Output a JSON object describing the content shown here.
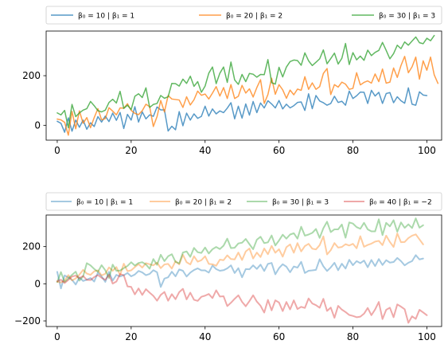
{
  "chart_data": [
    {
      "type": "line",
      "xlim": [
        -3,
        104
      ],
      "ylim": [
        -60,
        380
      ],
      "xticks": [
        0,
        20,
        40,
        60,
        80,
        100
      ],
      "yticks": [
        0,
        200
      ],
      "legend_placement": "top (above axes), 3 columns",
      "series": [
        {
          "name": "β₀ = 10 | β₁ = 1",
          "color": "#1f77b4",
          "values": [
            16,
            8,
            -28,
            30,
            -24,
            21,
            -8,
            21,
            -16,
            10,
            -5,
            35,
            13,
            37,
            15,
            49,
            20,
            52,
            -13,
            44,
            21,
            75,
            13,
            54,
            26,
            42,
            36,
            74,
            62,
            62,
            -23,
            -4,
            -18,
            55,
            -2,
            49,
            21,
            46,
            28,
            36,
            77,
            37,
            66,
            46,
            58,
            51,
            69,
            91,
            26,
            77,
            29,
            86,
            41,
            96,
            51,
            90,
            70,
            99,
            86,
            70,
            100,
            66,
            85,
            70,
            79,
            92,
            94,
            60,
            127,
            67,
            120,
            98,
            91,
            81,
            88,
            117,
            92,
            97,
            81,
            138,
            108,
            119,
            134,
            133,
            88,
            141,
            118,
            133,
            88,
            128,
            132,
            91,
            115,
            99,
            89,
            151,
            85,
            81,
            135,
            122,
            120
          ]
        },
        {
          "name": "β₀ = 20 | β₁ = 2",
          "color": "#ff7f0e",
          "values": [
            25,
            22,
            12,
            -40,
            56,
            -14,
            58,
            8,
            31,
            -10,
            31,
            67,
            22,
            27,
            71,
            57,
            42,
            70,
            69,
            87,
            60,
            48,
            43,
            59,
            85,
            75,
            -5,
            35,
            100,
            54,
            120,
            106,
            104,
            102,
            72,
            115,
            82,
            103,
            138,
            121,
            126,
            106,
            130,
            156,
            118,
            152,
            108,
            164,
            108,
            117,
            161,
            130,
            147,
            114,
            152,
            184,
            88,
            124,
            190,
            125,
            164,
            143,
            109,
            142,
            123,
            146,
            141,
            196,
            145,
            171,
            145,
            156,
            209,
            229,
            124,
            164,
            154,
            174,
            166,
            145,
            149,
            212,
            163,
            173,
            179,
            170,
            207,
            176,
            227,
            170,
            174,
            231,
            193,
            241,
            278,
            212,
            236,
            275,
            186,
            260,
            222,
            275,
            203,
            169
          ]
        },
        {
          "name": "β₀ = 30 | β₁ = 3",
          "color": "#2ca02c",
          "values": [
            50,
            42,
            60,
            -10,
            84,
            35,
            50,
            61,
            67,
            96,
            79,
            59,
            54,
            61,
            92,
            105,
            90,
            137,
            68,
            81,
            63,
            117,
            127,
            112,
            151,
            72,
            84,
            88,
            120,
            109,
            115,
            169,
            168,
            158,
            186,
            169,
            198,
            157,
            176,
            133,
            158,
            210,
            235,
            168,
            210,
            235,
            173,
            255,
            183,
            165,
            205,
            176,
            209,
            206,
            194,
            205,
            204,
            265,
            172,
            166,
            234,
            195,
            235,
            257,
            263,
            261,
            242,
            292,
            260,
            241,
            254,
            268,
            304,
            248,
            269,
            291,
            247,
            270,
            330,
            245,
            293,
            264,
            279,
            262,
            303,
            281,
            294,
            302,
            334,
            302,
            268,
            289,
            323,
            309,
            336,
            323,
            340,
            356,
            333,
            329,
            351,
            341,
            362
          ]
        }
      ]
    },
    {
      "type": "line",
      "xlim": [
        -3,
        104
      ],
      "ylim": [
        -230,
        370
      ],
      "xticks": [
        0,
        20,
        40,
        60,
        80,
        100
      ],
      "yticks": [
        -200,
        0,
        200
      ],
      "legend_placement": "top (above axes), 4 columns",
      "series": [
        {
          "name": "β₀ = 10 | β₁ = 1",
          "color": "#1f77b4",
          "values": [
            64,
            -25,
            45,
            34,
            21,
            -4,
            34,
            15,
            22,
            31,
            12,
            60,
            40,
            10,
            64,
            17,
            48,
            39,
            46,
            58,
            40,
            50,
            69,
            61,
            46,
            53,
            73,
            62,
            -17,
            28,
            35,
            65,
            40,
            77,
            70,
            39,
            60,
            74,
            83,
            72,
            72,
            60,
            98,
            79,
            70,
            73,
            83,
            99,
            58,
            84,
            35,
            79,
            78,
            99,
            80,
            103,
            69,
            107,
            112,
            51,
            84,
            105,
            92,
            62,
            93,
            87,
            118,
            58,
            70,
            72,
            75,
            132,
            94,
            69,
            88,
            113,
            73,
            108,
            82,
            129,
            100,
            122,
            111,
            125,
            89,
            128,
            95,
            133,
            101,
            127,
            114,
            117,
            139,
            122,
            99,
            113,
            122,
            154,
            131,
            136
          ]
        },
        {
          "name": "β₀ = 20 | β₁ = 2",
          "color": "#ff7f0e",
          "values": [
            11,
            7,
            16,
            47,
            18,
            29,
            49,
            75,
            55,
            48,
            67,
            72,
            45,
            54,
            88,
            70,
            90,
            47,
            108,
            68,
            72,
            90,
            106,
            87,
            111,
            105,
            99,
            114,
            84,
            104,
            107,
            82,
            122,
            104,
            156,
            116,
            104,
            148,
            119,
            127,
            148,
            107,
            105,
            97,
            130,
            127,
            153,
            133,
            131,
            168,
            128,
            174,
            190,
            136,
            168,
            144,
            190,
            159,
            204,
            167,
            186,
            146,
            197,
            212,
            167,
            219,
            174,
            203,
            215,
            189,
            185,
            208,
            255,
            158,
            181,
            219,
            195,
            198,
            213,
            206,
            215,
            191,
            256,
            199,
            209,
            216,
            227,
            231,
            208,
            259,
            225,
            198,
            271,
            224,
            225,
            246,
            259,
            266,
            239,
            212
          ]
        },
        {
          "name": "β₀ = 30 | β₁ = 3",
          "color": "#2ca02c",
          "values": [
            9,
            63,
            9,
            29,
            48,
            65,
            17,
            40,
            111,
            99,
            80,
            64,
            100,
            73,
            31,
            103,
            70,
            71,
            84,
            96,
            116,
            98,
            112,
            116,
            104,
            81,
            133,
            102,
            156,
            122,
            148,
            159,
            118,
            110,
            168,
            174,
            145,
            193,
            170,
            166,
            195,
            163,
            186,
            198,
            187,
            205,
            243,
            192,
            194,
            217,
            221,
            241,
            213,
            186,
            237,
            253,
            219,
            223,
            260,
            206,
            233,
            264,
            243,
            265,
            272,
            243,
            307,
            259,
            265,
            274,
            295,
            247,
            299,
            334,
            278,
            293,
            293,
            319,
            248,
            330,
            324,
            305,
            296,
            328,
            293,
            282,
            282,
            347,
            262,
            328,
            309,
            342,
            280,
            330,
            301,
            320,
            300,
            352,
            302,
            315
          ]
        },
        {
          "name": "β₀ = 40 | β₁ = −2",
          "color": "#d62728",
          "values": [
            14,
            22,
            4,
            21,
            39,
            44,
            30,
            42,
            21,
            20,
            36,
            47,
            32,
            21,
            49,
            1,
            12,
            52,
            46,
            -14,
            -17,
            -57,
            -25,
            -60,
            -29,
            -48,
            -65,
            -91,
            -60,
            -44,
            -91,
            -56,
            -83,
            -45,
            -27,
            -84,
            -48,
            -86,
            -92,
            -70,
            -64,
            -55,
            -77,
            -35,
            -69,
            -67,
            -120,
            -102,
            -81,
            -62,
            -97,
            -121,
            -93,
            -62,
            -96,
            -118,
            -155,
            -87,
            -143,
            -89,
            -101,
            -147,
            -98,
            -138,
            -89,
            -136,
            -124,
            -130,
            -79,
            -106,
            -115,
            -129,
            -81,
            -146,
            -128,
            -183,
            -119,
            -139,
            -152,
            -168,
            -173,
            -180,
            -177,
            -161,
            -130,
            -169,
            -138,
            -98,
            -190,
            -140,
            -129,
            -180,
            -111,
            -123,
            -137,
            -210,
            -175,
            -189,
            -140,
            -154,
            -169
          ]
        }
      ]
    }
  ]
}
